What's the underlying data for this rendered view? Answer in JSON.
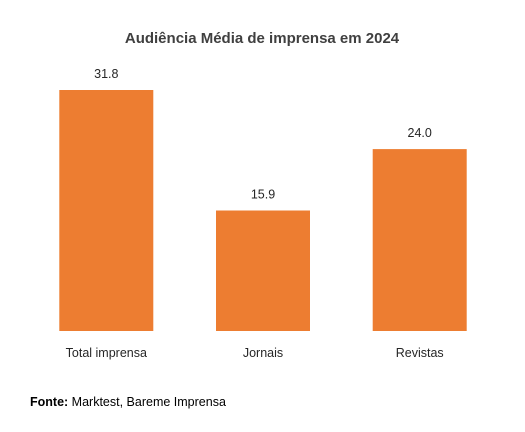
{
  "chart_data": {
    "type": "bar",
    "title": "Audiência Média de imprensa em 2024",
    "categories": [
      "Total imprensa",
      "Jornais",
      "Revistas"
    ],
    "values": [
      31.8,
      15.9,
      24.0
    ],
    "value_labels": [
      "31.8",
      "15.9",
      "24.0"
    ],
    "ylim": [
      0,
      31.8
    ],
    "grid": false,
    "legend": "none",
    "bar_color": "#ED7D31"
  },
  "source": {
    "label": "Fonte:",
    "text": "Marktest, Bareme Imprensa"
  }
}
